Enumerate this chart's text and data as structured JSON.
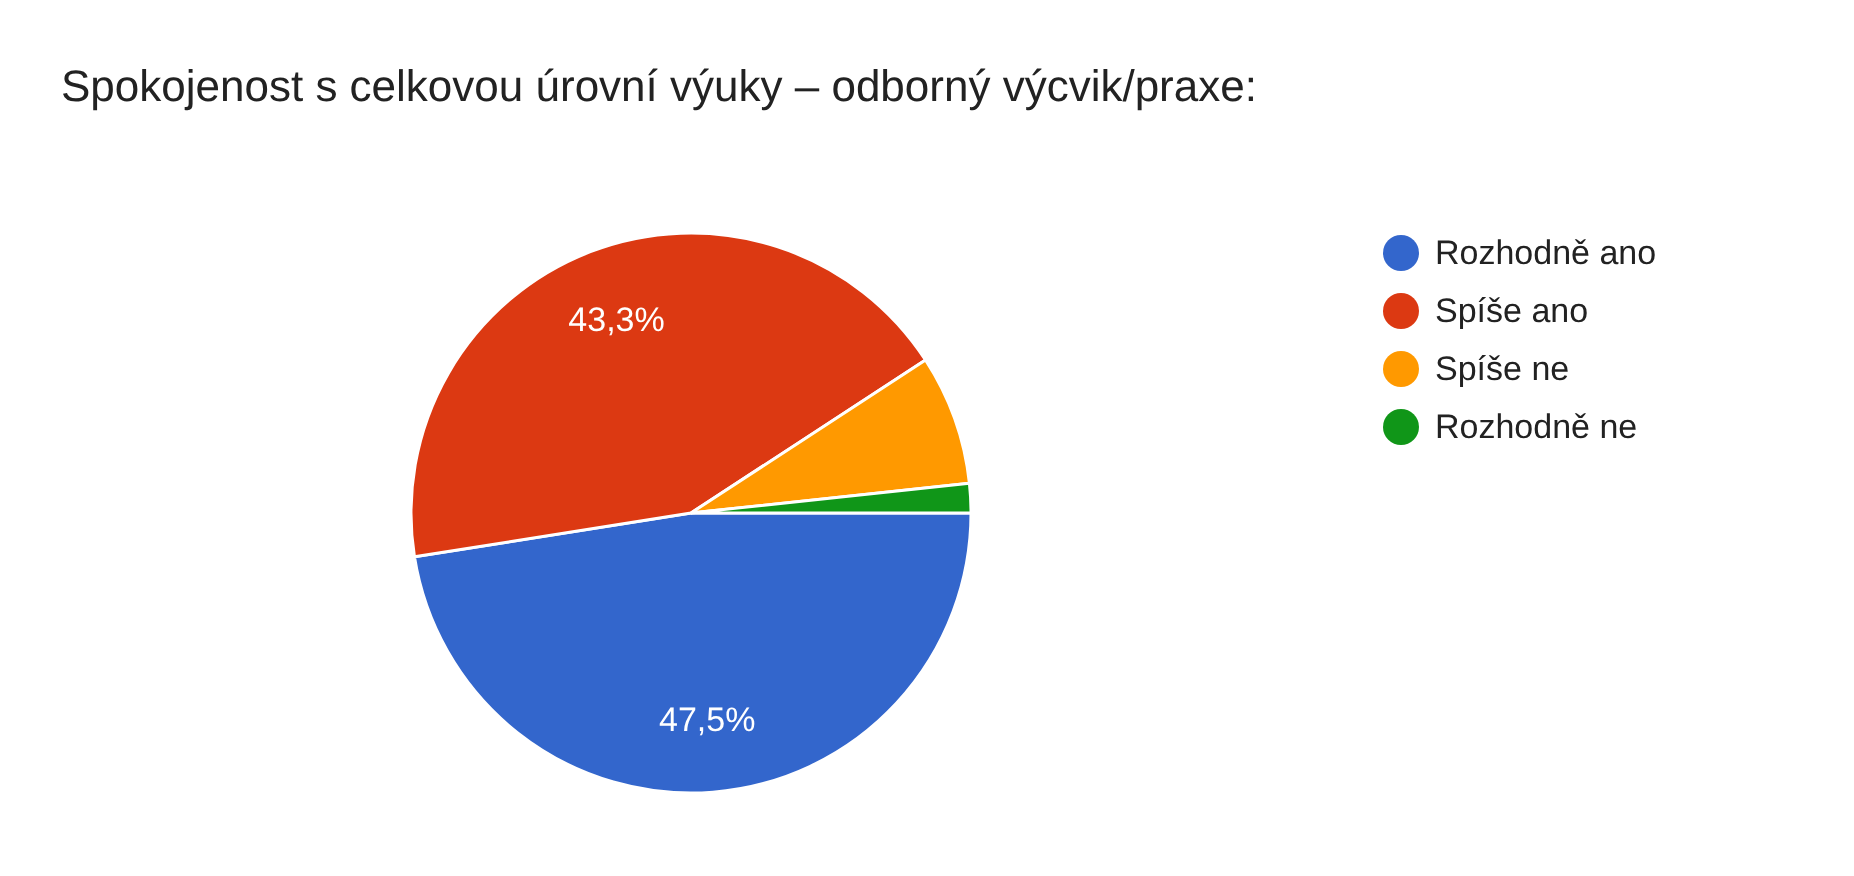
{
  "chart_data": {
    "type": "pie",
    "title": "Spokojenost s celkovou úrovní výuky – odborný výcvik/praxe:",
    "categories": [
      "Rozhodně ano",
      "Spíše ano",
      "Spíše ne",
      "Rozhodně ne"
    ],
    "values": [
      47.5,
      43.3,
      7.5,
      1.7
    ],
    "colors": [
      "#3366cc",
      "#dc3912",
      "#ff9900",
      "#109618"
    ],
    "value_labels": [
      "47,5%",
      "43,3%",
      null,
      null
    ],
    "legend": "right"
  }
}
